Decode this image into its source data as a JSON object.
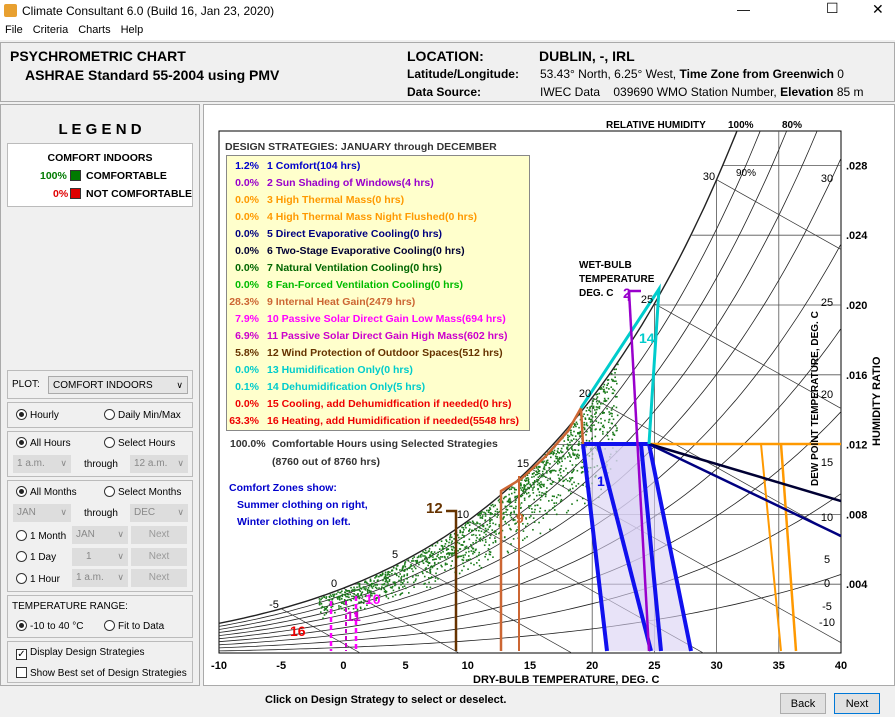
{
  "window": {
    "title": "Climate Consultant 6.0 (Build 16, Jan 23, 2020)",
    "minimize": "—",
    "maximize": "☐",
    "close": "✕"
  },
  "menu": [
    "File",
    "Criteria",
    "Charts",
    "Help"
  ],
  "header": {
    "title": "PSYCHROMETRIC CHART",
    "subtitle": "ASHRAE Standard 55-2004 using PMV",
    "location_label": "LOCATION:",
    "location": "DUBLIN, -, IRL",
    "latlon_label": "Latitude/Longitude:",
    "latlon": "53.43° North, 6.25° West,",
    "tz_label": "Time Zone from Greenwich",
    "tz": "0",
    "source_label": "Data Source:",
    "source": "IWEC Data    039690 WMO Station Number,",
    "elev_label": "Elevation",
    "elev": "85 m"
  },
  "legend": {
    "title": "L E G E N D",
    "heading": "COMFORT INDOORS",
    "items": [
      {
        "pct": "100%",
        "label": "COMFORTABLE",
        "color": "#007a00"
      },
      {
        "pct": "0%",
        "label": "NOT COMFORTABLE",
        "color": "#e00000"
      }
    ]
  },
  "controls": {
    "plot_label": "PLOT:",
    "plot_value": "COMFORT INDOORS",
    "hourly": "Hourly",
    "daily": "Daily Min/Max",
    "all_hours": "All Hours",
    "select_hours": "Select Hours",
    "hour_from": "1 a.m.",
    "through": "through",
    "hour_to": "12 a.m.",
    "all_months": "All Months",
    "select_months": "Select Months",
    "month_from": "JAN",
    "month_to": "DEC",
    "one_month": "1 Month",
    "one_month_val": "JAN",
    "one_day": "1 Day",
    "one_day_val": "1",
    "one_hour": "1 Hour",
    "one_hour_val": "1 a.m.",
    "next": "Next",
    "temp_range_label": "TEMPERATURE RANGE:",
    "range_a": "-10 to 40 °C",
    "range_b": "Fit to Data",
    "display_strategies": "Display Design Strategies",
    "show_best": "Show Best set of Design Strategies"
  },
  "strategies": {
    "title": "DESIGN STRATEGIES:  JANUARY through DECEMBER",
    "items": [
      {
        "pct": "1.2%",
        "label": "1 Comfort(104 hrs)",
        "color": "#0000cc"
      },
      {
        "pct": "0.0%",
        "label": "2 Sun Shading of Windows(4 hrs)",
        "color": "#9900cc"
      },
      {
        "pct": "0.0%",
        "label": "3 High Thermal Mass(0 hrs)",
        "color": "#ff9900"
      },
      {
        "pct": "0.0%",
        "label": "4 High Thermal Mass Night Flushed(0 hrs)",
        "color": "#ff9900"
      },
      {
        "pct": "0.0%",
        "label": "5 Direct Evaporative Cooling(0 hrs)",
        "color": "#000080"
      },
      {
        "pct": "0.0%",
        "label": "6 Two-Stage Evaporative Cooling(0 hrs)",
        "color": "#000033"
      },
      {
        "pct": "0.0%",
        "label": "7 Natural Ventilation Cooling(0 hrs)",
        "color": "#006600"
      },
      {
        "pct": "0.0%",
        "label": "8 Fan-Forced Ventilation Cooling(0 hrs)",
        "color": "#00bb00"
      },
      {
        "pct": "28.3%",
        "label": "9 Internal Heat Gain(2479 hrs)",
        "color": "#cc6633"
      },
      {
        "pct": "7.9%",
        "label": "10 Passive Solar Direct Gain Low Mass(694 hrs)",
        "color": "#ff00ff"
      },
      {
        "pct": "6.9%",
        "label": "11 Passive Solar Direct Gain High Mass(602 hrs)",
        "color": "#cc00cc"
      },
      {
        "pct": "5.8%",
        "label": "12 Wind Protection of Outdoor Spaces(512 hrs)",
        "color": "#663300"
      },
      {
        "pct": "0.0%",
        "label": "13 Humidification Only(0 hrs)",
        "color": "#00cccc"
      },
      {
        "pct": "0.1%",
        "label": "14 Dehumidification Only(5 hrs)",
        "color": "#00cccc"
      },
      {
        "pct": "0.0%",
        "label": "15 Cooling, add Dehumidfication if needed(0 hrs)",
        "color": "#ee0000"
      },
      {
        "pct": "63.3%",
        "label": "16 Heating, add Humidification if needed(5548 hrs)",
        "color": "#ee0000"
      }
    ],
    "total_pct": "100.0%",
    "total_label": "Comfortable Hours using Selected Strategies",
    "total_hours": "(8760 out of 8760 hrs)",
    "note": [
      "Comfort Zones show:",
      "Summer clothing on right,",
      "Winter clothing on left."
    ]
  },
  "chart": {
    "rh_label": "RELATIVE HUMIDITY",
    "rh_100": "100%",
    "rh_80": "80%",
    "rh_90": "90%",
    "wb_label": [
      "WET-BULB",
      "TEMPERATURE",
      "DEG. C"
    ],
    "xlabel": "DRY-BULB TEMPERATURE, DEG. C",
    "dp_label": "DEW POINT TEMPERATURE, DEG. C",
    "hr_label": "HUMIDITY RATIO",
    "x_ticks": [
      "-10",
      "-5",
      "0",
      "5",
      "10",
      "15",
      "20",
      "25",
      "30",
      "35",
      "40"
    ],
    "hr_ticks": [
      ".028",
      ".024",
      ".020",
      ".016",
      ".012",
      ".008",
      ".004"
    ],
    "dp_ticks": [
      "30",
      "25",
      "20",
      "15",
      "10",
      "5",
      "0",
      "-5",
      "-10"
    ],
    "wb_ticks": [
      "-5",
      "0",
      "5",
      "10",
      "15",
      "20",
      "25",
      "30"
    ],
    "zone_labels": [
      "16",
      "10",
      "11",
      "12",
      "9",
      "1",
      "14",
      "2"
    ]
  },
  "footer": {
    "hint": "Click on Design Strategy to select or deselect.",
    "back": "Back",
    "next": "Next"
  }
}
